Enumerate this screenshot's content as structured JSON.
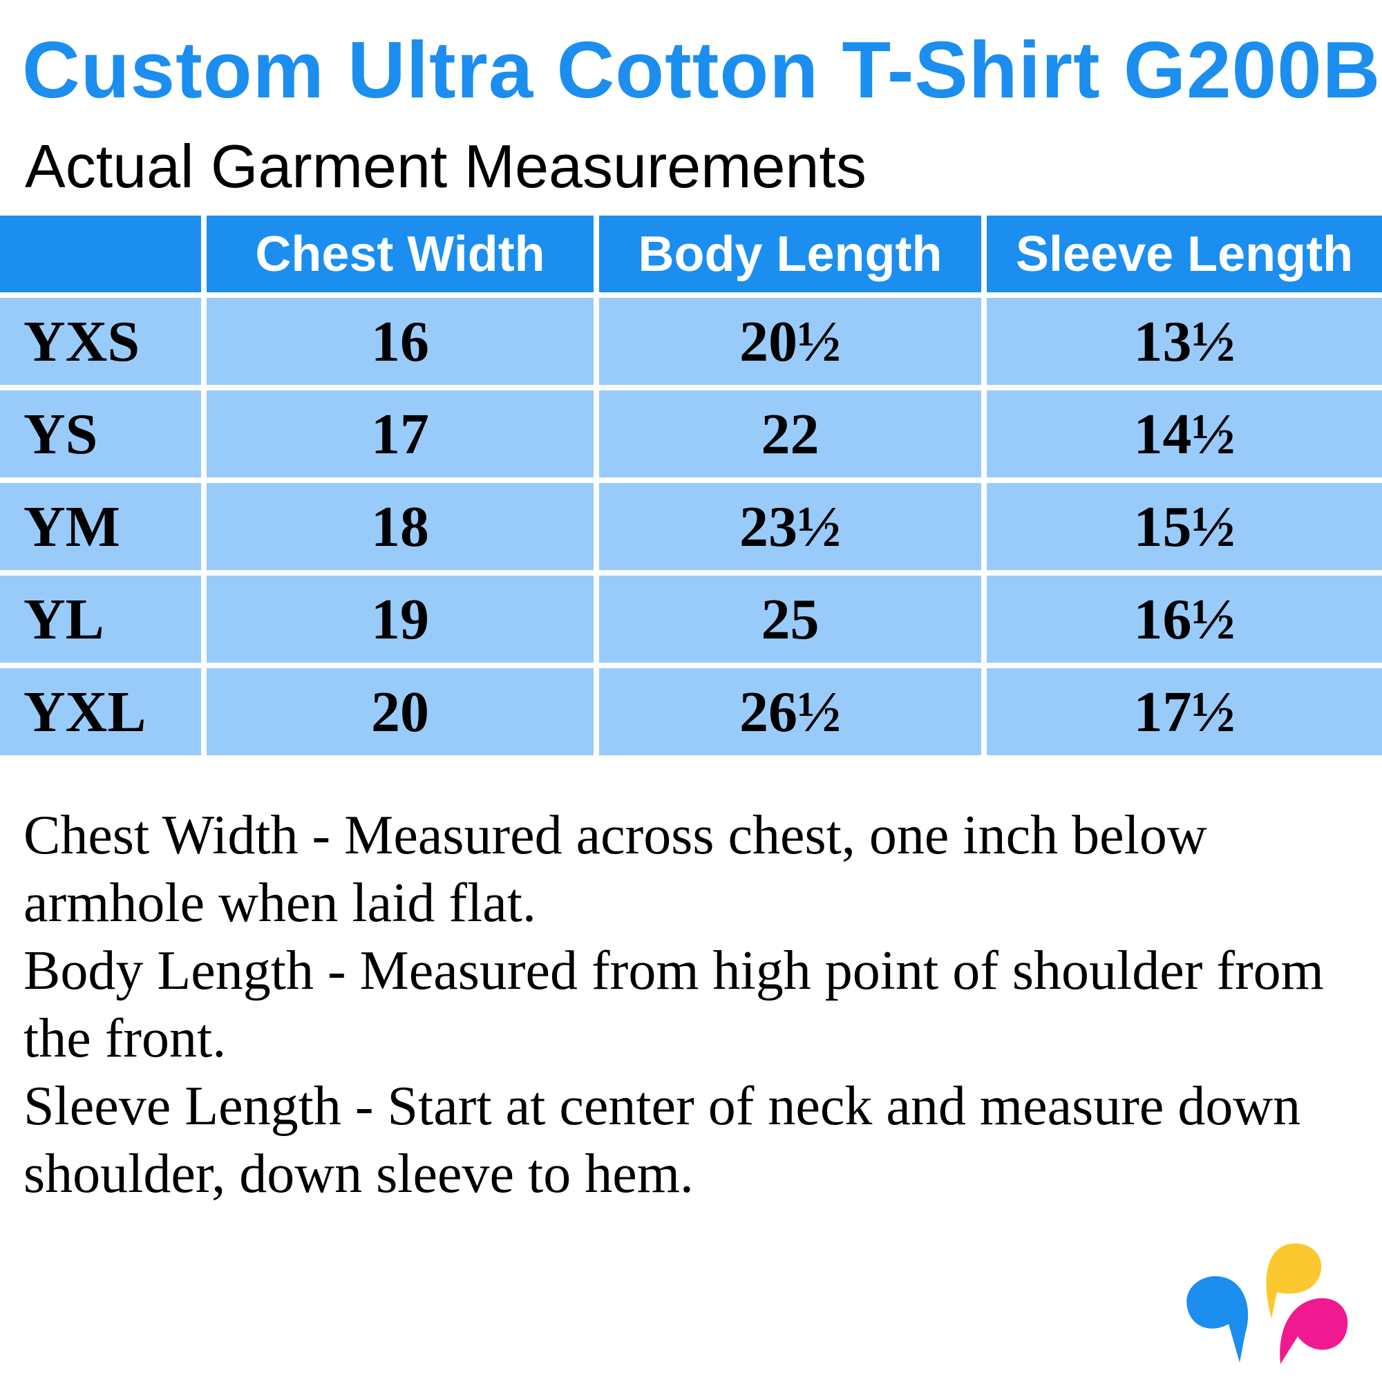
{
  "title": "Custom Ultra Cotton T-Shirt G200B",
  "subtitle": "Actual Garment Measurements",
  "table": {
    "headers": [
      "",
      "Chest Width",
      "Body Length",
      "Sleeve Length"
    ],
    "rows": [
      {
        "size": "YXS",
        "chest": "16",
        "body": "20½",
        "sleeve": "13½"
      },
      {
        "size": "YS",
        "chest": "17",
        "body": "22",
        "sleeve": "14½"
      },
      {
        "size": "YM",
        "chest": "18",
        "body": "23½",
        "sleeve": "15½"
      },
      {
        "size": "YL",
        "chest": "19",
        "body": "25",
        "sleeve": "16½"
      },
      {
        "size": "YXL",
        "chest": "20",
        "body": "26½",
        "sleeve": "17½"
      }
    ]
  },
  "notes": [
    "Chest Width - Measured across chest, one inch below armhole when laid flat.",
    "Body Length - Measured from high point of shoulder from the front.",
    "Sleeve Length - Start at center of neck and measure down shoulder, down sleeve to hem."
  ],
  "colors": {
    "accent": "#1b8ef0",
    "row": "#99cbfa",
    "logo": [
      "#1b8ef0",
      "#fcc82f",
      "#f0198f"
    ]
  }
}
